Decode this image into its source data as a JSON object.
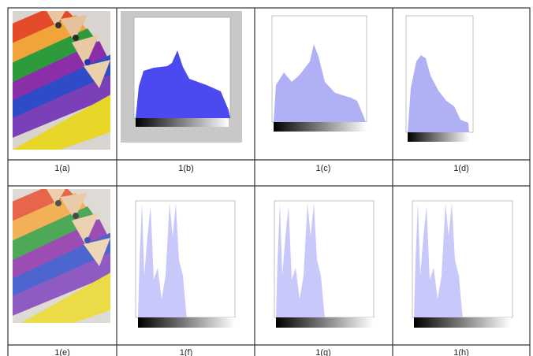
{
  "captions": [
    "1(a)",
    "1(b)",
    "1(c)",
    "1(d)",
    "1(e)",
    "1(f)",
    "1(g)",
    "1(h)"
  ]
}
